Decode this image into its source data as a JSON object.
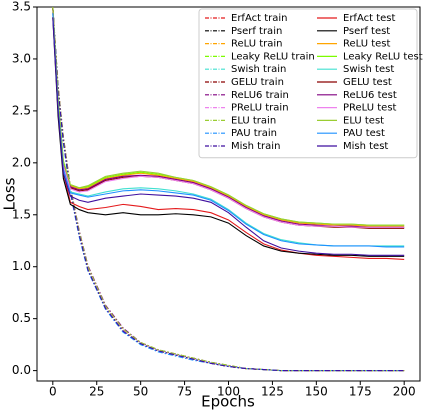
{
  "chart_data": {
    "type": "line",
    "x_label": "Epochs",
    "y_label": "Loss",
    "x": [
      0,
      3,
      6,
      10,
      15,
      20,
      30,
      40,
      50,
      60,
      70,
      80,
      90,
      100,
      110,
      120,
      130,
      140,
      150,
      160,
      170,
      180,
      190,
      200
    ],
    "xlim": [
      -9,
      209
    ],
    "xticks": [
      0,
      25,
      50,
      75,
      100,
      125,
      150,
      175,
      200
    ],
    "ylim": [
      -0.1,
      3.5
    ],
    "yticks": [
      {
        "value": 0,
        "label": "0.0"
      },
      0.5,
      {
        "value": 1,
        "label": "1.0"
      },
      1.5,
      {
        "value": 2,
        "label": "2.0"
      },
      2.5,
      {
        "value": 3,
        "label": "3.0"
      },
      3.5
    ],
    "legend": "upper right",
    "series": [
      {
        "name": "ErfAct train",
        "color": "#e41a1c",
        "linestyle": "dashdot",
        "values": [
          3.5,
          2.7,
          2.2,
          1.72,
          1.3,
          0.97,
          0.6,
          0.38,
          0.26,
          0.19,
          0.15,
          0.11,
          0.07,
          0.04,
          0.02,
          0.01,
          0.0,
          0.0,
          0.0,
          0.0,
          0.0,
          0.0,
          0.0,
          0.0
        ]
      },
      {
        "name": "Pserf train",
        "color": "#000000",
        "linestyle": "dashdot",
        "values": [
          3.5,
          2.72,
          2.22,
          1.74,
          1.32,
          0.98,
          0.61,
          0.39,
          0.26,
          0.19,
          0.15,
          0.11,
          0.07,
          0.04,
          0.02,
          0.01,
          0.0,
          0.0,
          0.0,
          0.0,
          0.0,
          0.0,
          0.0,
          0.0
        ]
      },
      {
        "name": "ReLU train",
        "color": "#ffa500",
        "linestyle": "dashdot",
        "values": [
          3.5,
          2.74,
          2.25,
          1.76,
          1.34,
          1.0,
          0.62,
          0.4,
          0.27,
          0.2,
          0.16,
          0.12,
          0.08,
          0.05,
          0.02,
          0.01,
          0.0,
          0.0,
          0.0,
          0.0,
          0.0,
          0.0,
          0.0,
          0.0
        ]
      },
      {
        "name": "Leaky ReLU train",
        "color": "#7cfc00",
        "linestyle": "dashdot",
        "values": [
          3.5,
          2.73,
          2.24,
          1.75,
          1.33,
          0.99,
          0.62,
          0.4,
          0.27,
          0.2,
          0.16,
          0.12,
          0.08,
          0.05,
          0.02,
          0.01,
          0.0,
          0.0,
          0.0,
          0.0,
          0.0,
          0.0,
          0.0,
          0.0
        ]
      },
      {
        "name": "Swish train",
        "color": "#40e0d0",
        "linestyle": "dashdot",
        "values": [
          3.5,
          2.7,
          2.2,
          1.72,
          1.3,
          0.96,
          0.6,
          0.38,
          0.25,
          0.19,
          0.15,
          0.11,
          0.07,
          0.04,
          0.02,
          0.01,
          0.0,
          0.0,
          0.0,
          0.0,
          0.0,
          0.0,
          0.0,
          0.0
        ]
      },
      {
        "name": "GELU train",
        "color": "#8b0000",
        "linestyle": "dashdot",
        "values": [
          3.5,
          2.71,
          2.21,
          1.73,
          1.31,
          0.97,
          0.61,
          0.39,
          0.26,
          0.19,
          0.15,
          0.11,
          0.07,
          0.04,
          0.02,
          0.01,
          0.0,
          0.0,
          0.0,
          0.0,
          0.0,
          0.0,
          0.0,
          0.0
        ]
      },
      {
        "name": "ReLU6 train",
        "color": "#800080",
        "linestyle": "dashdot",
        "values": [
          3.5,
          2.74,
          2.25,
          1.77,
          1.35,
          1.01,
          0.63,
          0.41,
          0.27,
          0.2,
          0.16,
          0.12,
          0.08,
          0.05,
          0.02,
          0.01,
          0.0,
          0.0,
          0.0,
          0.0,
          0.0,
          0.0,
          0.0,
          0.0
        ]
      },
      {
        "name": "PReLU train",
        "color": "#ee82ee",
        "linestyle": "dashdot",
        "values": [
          3.5,
          2.72,
          2.23,
          1.74,
          1.32,
          0.98,
          0.61,
          0.39,
          0.26,
          0.19,
          0.15,
          0.11,
          0.07,
          0.04,
          0.02,
          0.01,
          0.0,
          0.0,
          0.0,
          0.0,
          0.0,
          0.0,
          0.0,
          0.0
        ]
      },
      {
        "name": "ELU train",
        "color": "#9acd32",
        "linestyle": "dashdot",
        "values": [
          3.5,
          2.73,
          2.24,
          1.76,
          1.34,
          1.0,
          0.62,
          0.4,
          0.27,
          0.2,
          0.16,
          0.12,
          0.08,
          0.05,
          0.02,
          0.01,
          0.0,
          0.0,
          0.0,
          0.0,
          0.0,
          0.0,
          0.0,
          0.0
        ]
      },
      {
        "name": "PAU train",
        "color": "#1e90ff",
        "linestyle": "dashdot",
        "values": [
          3.5,
          2.69,
          2.19,
          1.71,
          1.29,
          0.96,
          0.59,
          0.37,
          0.25,
          0.18,
          0.14,
          0.1,
          0.07,
          0.04,
          0.02,
          0.01,
          0.0,
          0.0,
          0.0,
          0.0,
          0.0,
          0.0,
          0.0,
          0.0
        ]
      },
      {
        "name": "Mish train",
        "color": "#3f0f9f",
        "linestyle": "dashdot",
        "values": [
          3.5,
          2.71,
          2.21,
          1.73,
          1.31,
          0.97,
          0.6,
          0.38,
          0.26,
          0.19,
          0.15,
          0.11,
          0.07,
          0.04,
          0.02,
          0.01,
          0.0,
          0.0,
          0.0,
          0.0,
          0.0,
          0.0,
          0.0,
          0.0
        ]
      },
      {
        "name": "ErfAct test",
        "color": "#e41a1c",
        "linestyle": "solid",
        "values": [
          3.45,
          2.5,
          1.9,
          1.62,
          1.58,
          1.55,
          1.57,
          1.6,
          1.58,
          1.55,
          1.56,
          1.55,
          1.52,
          1.45,
          1.33,
          1.22,
          1.16,
          1.13,
          1.11,
          1.1,
          1.09,
          1.08,
          1.08,
          1.07
        ]
      },
      {
        "name": "Pserf test",
        "color": "#000000",
        "linestyle": "solid",
        "values": [
          3.4,
          2.45,
          1.85,
          1.6,
          1.55,
          1.52,
          1.5,
          1.52,
          1.5,
          1.5,
          1.51,
          1.5,
          1.48,
          1.42,
          1.3,
          1.2,
          1.15,
          1.13,
          1.12,
          1.11,
          1.11,
          1.1,
          1.1,
          1.1
        ]
      },
      {
        "name": "ReLU test",
        "color": "#ffa500",
        "linestyle": "solid",
        "values": [
          3.5,
          2.6,
          2.0,
          1.78,
          1.75,
          1.76,
          1.85,
          1.88,
          1.9,
          1.88,
          1.85,
          1.82,
          1.76,
          1.68,
          1.58,
          1.5,
          1.45,
          1.42,
          1.41,
          1.4,
          1.4,
          1.39,
          1.39,
          1.39
        ]
      },
      {
        "name": "Leaky ReLU test",
        "color": "#7cfc00",
        "linestyle": "solid",
        "values": [
          3.5,
          2.62,
          2.02,
          1.79,
          1.76,
          1.77,
          1.86,
          1.89,
          1.91,
          1.89,
          1.86,
          1.83,
          1.77,
          1.69,
          1.59,
          1.51,
          1.46,
          1.43,
          1.42,
          1.41,
          1.41,
          1.4,
          1.4,
          1.4
        ]
      },
      {
        "name": "Swish test",
        "color": "#40e0d0",
        "linestyle": "solid",
        "values": [
          3.45,
          2.55,
          1.95,
          1.72,
          1.7,
          1.68,
          1.72,
          1.75,
          1.76,
          1.75,
          1.73,
          1.7,
          1.65,
          1.55,
          1.42,
          1.32,
          1.26,
          1.23,
          1.21,
          1.2,
          1.2,
          1.2,
          1.2,
          1.2
        ]
      },
      {
        "name": "GELU test",
        "color": "#8b0000",
        "linestyle": "solid",
        "values": [
          3.48,
          2.58,
          1.98,
          1.76,
          1.73,
          1.74,
          1.83,
          1.86,
          1.87,
          1.86,
          1.83,
          1.8,
          1.74,
          1.66,
          1.56,
          1.48,
          1.43,
          1.4,
          1.39,
          1.38,
          1.38,
          1.37,
          1.37,
          1.37
        ]
      },
      {
        "name": "ReLU6 test",
        "color": "#800080",
        "linestyle": "solid",
        "values": [
          3.5,
          2.6,
          2.0,
          1.77,
          1.74,
          1.75,
          1.84,
          1.87,
          1.88,
          1.87,
          1.84,
          1.81,
          1.75,
          1.67,
          1.57,
          1.49,
          1.44,
          1.41,
          1.4,
          1.39,
          1.39,
          1.38,
          1.38,
          1.38
        ]
      },
      {
        "name": "PReLU test",
        "color": "#ee82ee",
        "linestyle": "solid",
        "values": [
          3.47,
          2.57,
          1.97,
          1.75,
          1.72,
          1.73,
          1.82,
          1.85,
          1.87,
          1.86,
          1.83,
          1.8,
          1.74,
          1.66,
          1.56,
          1.48,
          1.43,
          1.4,
          1.39,
          1.39,
          1.38,
          1.38,
          1.38,
          1.38
        ]
      },
      {
        "name": "ELU test",
        "color": "#9acd32",
        "linestyle": "solid",
        "values": [
          3.5,
          2.61,
          2.01,
          1.79,
          1.76,
          1.78,
          1.87,
          1.9,
          1.92,
          1.9,
          1.86,
          1.83,
          1.77,
          1.69,
          1.59,
          1.51,
          1.46,
          1.43,
          1.42,
          1.41,
          1.41,
          1.4,
          1.4,
          1.4
        ]
      },
      {
        "name": "PAU test",
        "color": "#1e90ff",
        "linestyle": "solid",
        "values": [
          3.44,
          2.54,
          1.94,
          1.71,
          1.69,
          1.67,
          1.7,
          1.73,
          1.74,
          1.73,
          1.71,
          1.69,
          1.64,
          1.54,
          1.41,
          1.31,
          1.25,
          1.22,
          1.21,
          1.2,
          1.2,
          1.2,
          1.19,
          1.19
        ]
      },
      {
        "name": "Mish test",
        "color": "#3f0f9f",
        "linestyle": "solid",
        "values": [
          3.4,
          2.5,
          1.9,
          1.68,
          1.64,
          1.62,
          1.66,
          1.68,
          1.7,
          1.69,
          1.68,
          1.66,
          1.62,
          1.52,
          1.38,
          1.25,
          1.18,
          1.15,
          1.13,
          1.12,
          1.12,
          1.11,
          1.11,
          1.11
        ]
      }
    ]
  }
}
